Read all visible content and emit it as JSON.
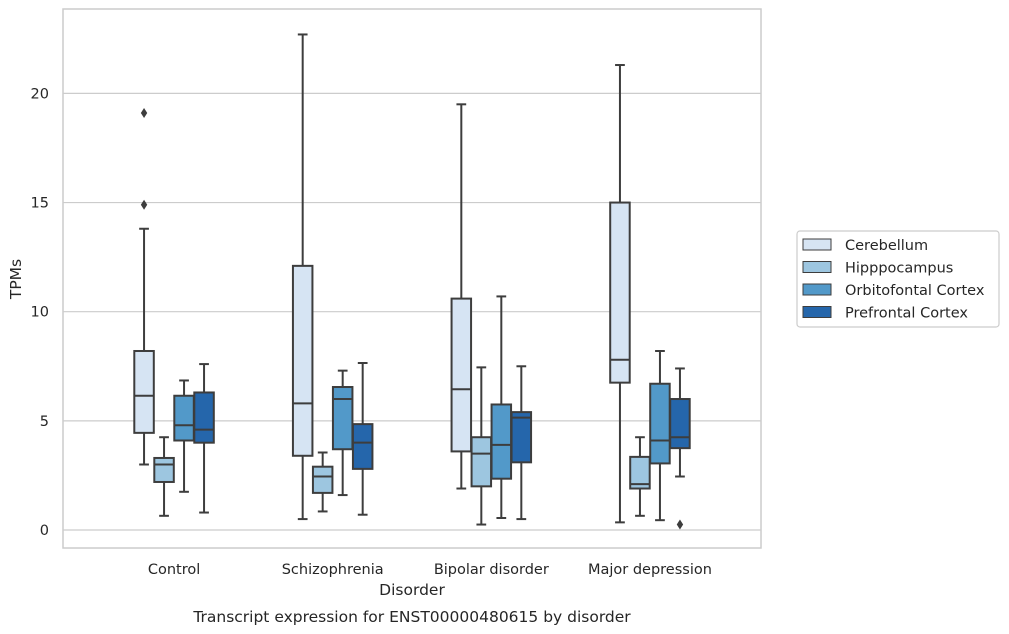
{
  "chart_data": {
    "type": "boxplot",
    "title": "",
    "caption": "Transcript expression for ENST00000480615 by disorder",
    "xlabel": "Disorder",
    "ylabel": "TPMs",
    "ylim": [
      -0.8,
      23.9
    ],
    "yticks": [
      0,
      5,
      10,
      15,
      20
    ],
    "grid": true,
    "legend_position": "right",
    "categories": [
      "Control",
      "Schizophrenia",
      "Bipolar disorder",
      "Major depression"
    ],
    "series": [
      {
        "name": "Cerebellum",
        "color": "#d6e4f3",
        "boxes": [
          {
            "whislo": 3.0,
            "q1": 4.45,
            "med": 6.15,
            "q3": 8.2,
            "whishi": 13.8,
            "fliers": [
              14.9,
              19.1
            ]
          },
          {
            "whislo": 0.5,
            "q1": 3.4,
            "med": 5.8,
            "q3": 12.1,
            "whishi": 22.7,
            "fliers": []
          },
          {
            "whislo": 1.9,
            "q1": 3.6,
            "med": 6.45,
            "q3": 10.6,
            "whishi": 19.5,
            "fliers": []
          },
          {
            "whislo": 0.35,
            "q1": 6.75,
            "med": 7.8,
            "q3": 15.0,
            "whishi": 21.3,
            "fliers": []
          }
        ]
      },
      {
        "name": "Hipppocampus",
        "color": "#9dc6e0",
        "boxes": [
          {
            "whislo": 0.65,
            "q1": 2.2,
            "med": 3.0,
            "q3": 3.3,
            "whishi": 4.25,
            "fliers": []
          },
          {
            "whislo": 0.85,
            "q1": 1.7,
            "med": 2.45,
            "q3": 2.9,
            "whishi": 3.55,
            "fliers": []
          },
          {
            "whislo": 0.25,
            "q1": 2.0,
            "med": 3.5,
            "q3": 4.25,
            "whishi": 7.45,
            "fliers": []
          },
          {
            "whislo": 0.65,
            "q1": 1.9,
            "med": 2.1,
            "q3": 3.35,
            "whishi": 4.25,
            "fliers": []
          }
        ]
      },
      {
        "name": "Orbitofontal Cortex",
        "color": "#5299c9",
        "boxes": [
          {
            "whislo": 1.75,
            "q1": 4.1,
            "med": 4.8,
            "q3": 6.15,
            "whishi": 6.85,
            "fliers": []
          },
          {
            "whislo": 1.6,
            "q1": 3.7,
            "med": 6.0,
            "q3": 6.55,
            "whishi": 7.3,
            "fliers": []
          },
          {
            "whislo": 0.55,
            "q1": 2.35,
            "med": 3.9,
            "q3": 5.75,
            "whishi": 10.7,
            "fliers": []
          },
          {
            "whislo": 0.45,
            "q1": 3.05,
            "med": 4.1,
            "q3": 6.7,
            "whishi": 8.2,
            "fliers": []
          }
        ]
      },
      {
        "name": "Prefrontal Cortex",
        "color": "#2566ab",
        "boxes": [
          {
            "whislo": 0.8,
            "q1": 4.0,
            "med": 4.6,
            "q3": 6.3,
            "whishi": 7.6,
            "fliers": []
          },
          {
            "whislo": 0.7,
            "q1": 2.8,
            "med": 4.0,
            "q3": 4.85,
            "whishi": 7.65,
            "fliers": []
          },
          {
            "whislo": 0.5,
            "q1": 3.1,
            "med": 5.15,
            "q3": 5.4,
            "whishi": 7.5,
            "fliers": []
          },
          {
            "whislo": 2.45,
            "q1": 3.75,
            "med": 4.25,
            "q3": 6.0,
            "whishi": 7.4,
            "fliers": [
              0.25
            ]
          }
        ]
      }
    ]
  }
}
